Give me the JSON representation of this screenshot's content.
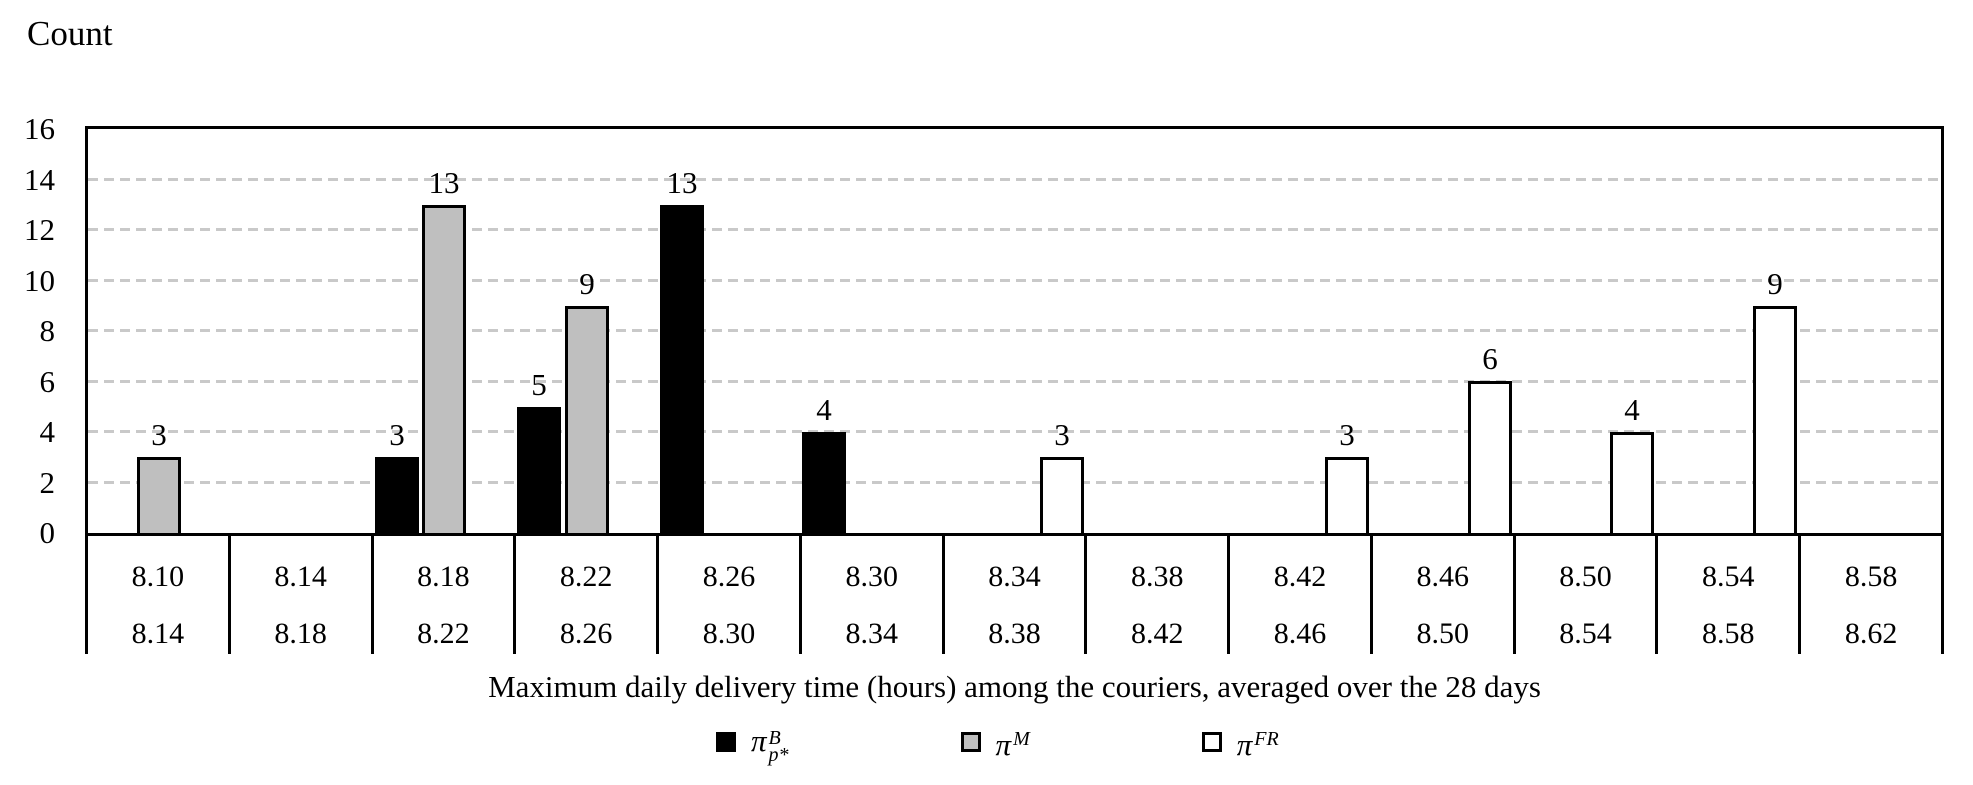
{
  "chart_data": {
    "type": "bar",
    "subtype": "grouped-histogram",
    "ylabel": "Count",
    "xlabel": "Maximum daily delivery time (hours) among the couriers, averaged over the 28 days",
    "ylim": [
      0,
      16
    ],
    "yticks": [
      0,
      2,
      4,
      6,
      8,
      10,
      12,
      14,
      16
    ],
    "grid": "horizontal-dashed",
    "legend_position": "bottom",
    "bins": [
      {
        "lo": "8.10",
        "hi": "8.14"
      },
      {
        "lo": "8.14",
        "hi": "8.18"
      },
      {
        "lo": "8.18",
        "hi": "8.22"
      },
      {
        "lo": "8.22",
        "hi": "8.26"
      },
      {
        "lo": "8.26",
        "hi": "8.30"
      },
      {
        "lo": "8.30",
        "hi": "8.34"
      },
      {
        "lo": "8.34",
        "hi": "8.38"
      },
      {
        "lo": "8.38",
        "hi": "8.42"
      },
      {
        "lo": "8.42",
        "hi": "8.46"
      },
      {
        "lo": "8.46",
        "hi": "8.50"
      },
      {
        "lo": "8.50",
        "hi": "8.54"
      },
      {
        "lo": "8.54",
        "hi": "8.58"
      },
      {
        "lo": "8.58",
        "hi": "8.62"
      }
    ],
    "series": [
      {
        "name": "pi-B-pstar",
        "legend": {
          "base": "π",
          "sup": "B",
          "sub": "p*"
        },
        "fill": "#000000",
        "border": "#000000",
        "values": [
          0,
          0,
          3,
          5,
          13,
          4,
          0,
          0,
          0,
          0,
          0,
          0,
          0
        ]
      },
      {
        "name": "pi-M",
        "legend": {
          "base": "π",
          "sup": "M",
          "sub": ""
        },
        "fill": "#BFBFBF",
        "border": "#000000",
        "values": [
          3,
          0,
          13,
          9,
          0,
          0,
          0,
          0,
          0,
          0,
          0,
          0,
          0
        ]
      },
      {
        "name": "pi-FR",
        "legend": {
          "base": "π",
          "sup": "FR",
          "sub": ""
        },
        "fill": "#FFFFFF",
        "border": "#000000",
        "values": [
          0,
          0,
          0,
          0,
          0,
          0,
          3,
          0,
          3,
          6,
          4,
          9,
          0
        ]
      }
    ],
    "colors": {
      "axis": "#000000",
      "grid": "#C9C9C9",
      "background": "#FFFFFF"
    }
  }
}
